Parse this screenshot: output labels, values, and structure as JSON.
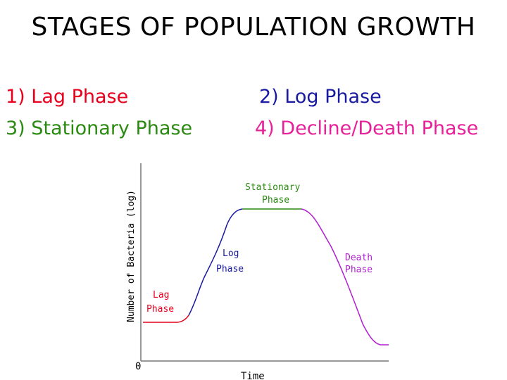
{
  "title": "STAGES OF POPULATION GROWTH",
  "phases": [
    {
      "label": "1) Lag Phase",
      "color": "#e8001c"
    },
    {
      "label": "2) Log Phase",
      "color": "#1a1aa0"
    },
    {
      "label": "3) Stationary Phase",
      "color": "#2a8a12"
    },
    {
      "label": "4) Decline/Death Phase",
      "color": "#e8209a"
    }
  ],
  "diagram": {
    "y_axis_label": "Number of Bacteria (log)",
    "x_axis_label": "Time",
    "origin_label": "0",
    "curve_labels": {
      "lag": [
        "Lag",
        "Phase"
      ],
      "log": [
        "Log",
        "Phase"
      ],
      "stationary": [
        "Stationary",
        "Phase"
      ],
      "death": [
        "Death",
        "Phase"
      ]
    },
    "curve_colors": {
      "lag": "#e8001c",
      "log": "#1a1aa0",
      "stationary": "#2a8a12",
      "death": "#b020d0"
    }
  }
}
